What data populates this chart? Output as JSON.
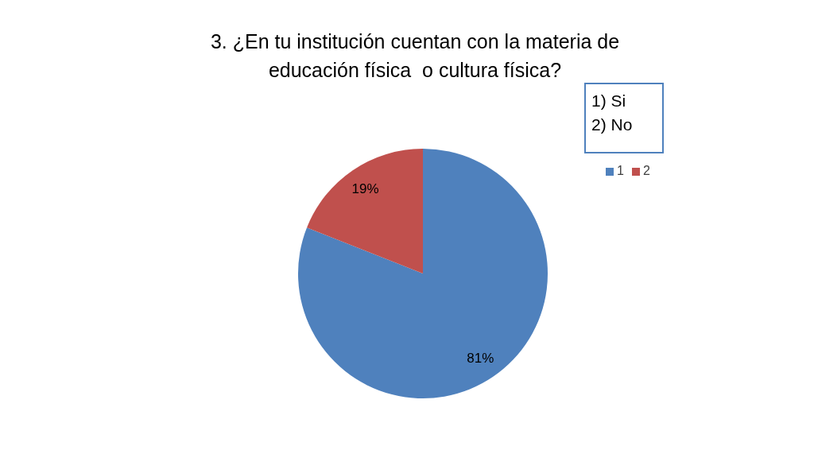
{
  "chart_data": {
    "type": "pie",
    "title": "3. ¿En tu institución cuentan con la materia de educación física  o cultura física?",
    "categories": [
      "1",
      "2"
    ],
    "values": [
      81,
      19
    ],
    "colors": [
      "#4f81bd",
      "#c0504d"
    ],
    "value_labels": [
      "81%",
      "19%"
    ],
    "legend": "right",
    "annotations": [
      "1) Si",
      "2) No"
    ]
  }
}
